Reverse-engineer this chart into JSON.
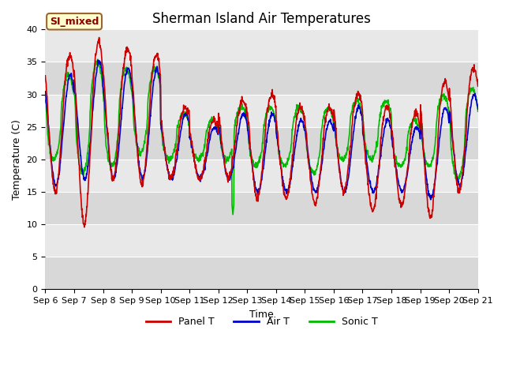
{
  "title": "Sherman Island Air Temperatures",
  "xlabel": "Time",
  "ylabel": "Temperature (C)",
  "ylim": [
    0,
    40
  ],
  "yticks": [
    0,
    5,
    10,
    15,
    20,
    25,
    30,
    35,
    40
  ],
  "date_labels": [
    "Sep 6",
    "Sep 7",
    "Sep 8",
    "Sep 9",
    "Sep 10",
    "Sep 11",
    "Sep 12",
    "Sep 13",
    "Sep 14",
    "Sep 15",
    "Sep 16",
    "Sep 17",
    "Sep 18",
    "Sep 19",
    "Sep 20",
    "Sep 21"
  ],
  "panel_T_color": "#cc0000",
  "air_T_color": "#0000cc",
  "sonic_T_color": "#00bb00",
  "legend_label": "SI_mixed",
  "legend_bg": "#ffffcc",
  "legend_border": "#996633",
  "plot_bg": "#e0e0e0",
  "fig_bg": "#ffffff",
  "title_fontsize": 12,
  "axis_fontsize": 9,
  "tick_fontsize": 8,
  "n_days": 15,
  "seed": 42
}
